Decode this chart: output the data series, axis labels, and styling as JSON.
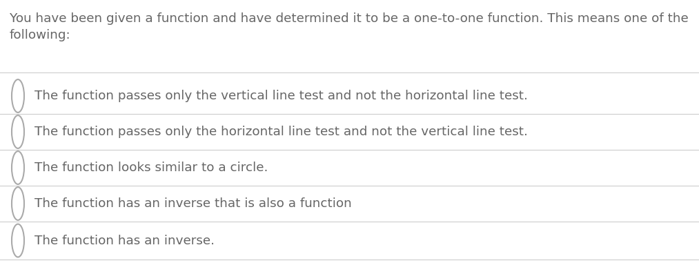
{
  "background_color": "#ffffff",
  "header_text_line1": "You have been given a function and have determined it to be a one-to-one function. This means one of the",
  "header_text_line2": "following:",
  "options": [
    "The function passes only the vertical line test and not the horizontal line test.",
    "The function passes only the horizontal line test and not the vertical line test.",
    "The function looks similar to a circle.",
    "The function has an inverse that is also a function",
    "The function has an inverse."
  ],
  "text_color": "#666666",
  "header_fontsize": 13.2,
  "option_fontsize": 13.2,
  "circle_color": "#aaaaaa",
  "line_color": "#cccccc",
  "fig_width": 10.13,
  "fig_height": 3.81,
  "dpi": 100
}
